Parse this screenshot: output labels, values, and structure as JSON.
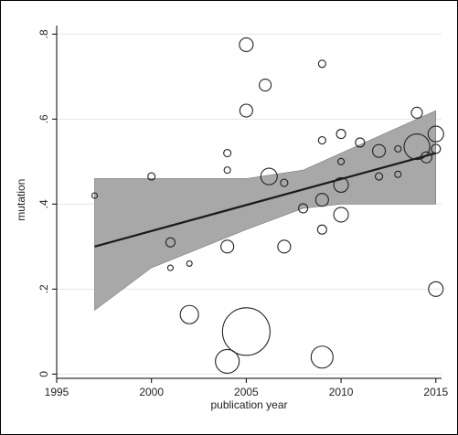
{
  "chart_data": {
    "type": "scatter",
    "xlabel": "publication year",
    "ylabel": "mutation",
    "xlim": [
      1995,
      2015.3
    ],
    "ylim": [
      -0.01,
      0.82
    ],
    "x_ticks": [
      1995,
      2000,
      2005,
      2010,
      2015
    ],
    "x_tick_labels": [
      "1995",
      "2000",
      "2005",
      "2010",
      "2015"
    ],
    "y_ticks": [
      0,
      0.2,
      0.4,
      0.6,
      0.8
    ],
    "y_tick_labels": [
      "0",
      ".2",
      ".4",
      ".6",
      ".8"
    ],
    "grid": true,
    "marker": "hollow circle, size proportional to weight",
    "fit_line": {
      "x": [
        1997,
        2015
      ],
      "y": [
        0.3,
        0.52
      ]
    },
    "confidence_band": {
      "x": [
        1997,
        2000,
        2005,
        2008,
        2010,
        2013,
        2015
      ],
      "lower": [
        0.15,
        0.25,
        0.34,
        0.39,
        0.4,
        0.4,
        0.4
      ],
      "upper": [
        0.46,
        0.46,
        0.46,
        0.48,
        0.52,
        0.58,
        0.62
      ]
    },
    "points": [
      {
        "x": 1997,
        "y": 0.42,
        "size": 3
      },
      {
        "x": 2000,
        "y": 0.465,
        "size": 4
      },
      {
        "x": 2001,
        "y": 0.31,
        "size": 5
      },
      {
        "x": 2001,
        "y": 0.25,
        "size": 3
      },
      {
        "x": 2002,
        "y": 0.26,
        "size": 3
      },
      {
        "x": 2002,
        "y": 0.14,
        "size": 10
      },
      {
        "x": 2004,
        "y": 0.52,
        "size": 4
      },
      {
        "x": 2004,
        "y": 0.48,
        "size": 3.5
      },
      {
        "x": 2004,
        "y": 0.3,
        "size": 7
      },
      {
        "x": 2004,
        "y": 0.03,
        "size": 13
      },
      {
        "x": 2005,
        "y": 0.775,
        "size": 7.5
      },
      {
        "x": 2005,
        "y": 0.62,
        "size": 7
      },
      {
        "x": 2005,
        "y": 0.1,
        "size": 26
      },
      {
        "x": 2006,
        "y": 0.68,
        "size": 6.5
      },
      {
        "x": 2006.2,
        "y": 0.465,
        "size": 9
      },
      {
        "x": 2007,
        "y": 0.45,
        "size": 4
      },
      {
        "x": 2007,
        "y": 0.3,
        "size": 7
      },
      {
        "x": 2008,
        "y": 0.39,
        "size": 5
      },
      {
        "x": 2009,
        "y": 0.73,
        "size": 4
      },
      {
        "x": 2009,
        "y": 0.55,
        "size": 4
      },
      {
        "x": 2009,
        "y": 0.41,
        "size": 7
      },
      {
        "x": 2009,
        "y": 0.34,
        "size": 5
      },
      {
        "x": 2009,
        "y": 0.04,
        "size": 12
      },
      {
        "x": 2010,
        "y": 0.565,
        "size": 5
      },
      {
        "x": 2010,
        "y": 0.5,
        "size": 3.5
      },
      {
        "x": 2010,
        "y": 0.445,
        "size": 8
      },
      {
        "x": 2010,
        "y": 0.375,
        "size": 8
      },
      {
        "x": 2011,
        "y": 0.545,
        "size": 5
      },
      {
        "x": 2012,
        "y": 0.525,
        "size": 7
      },
      {
        "x": 2012,
        "y": 0.465,
        "size": 4
      },
      {
        "x": 2013,
        "y": 0.53,
        "size": 3.5
      },
      {
        "x": 2013,
        "y": 0.47,
        "size": 3.5
      },
      {
        "x": 2014,
        "y": 0.615,
        "size": 6
      },
      {
        "x": 2014,
        "y": 0.535,
        "size": 14
      },
      {
        "x": 2014.5,
        "y": 0.51,
        "size": 6
      },
      {
        "x": 2015,
        "y": 0.565,
        "size": 8.5
      },
      {
        "x": 2015,
        "y": 0.53,
        "size": 5
      },
      {
        "x": 2015,
        "y": 0.2,
        "size": 8
      }
    ]
  }
}
